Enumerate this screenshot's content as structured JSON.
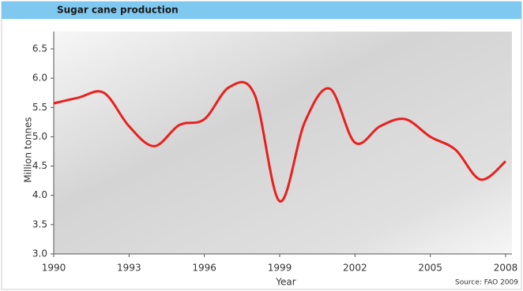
{
  "chart_data": {
    "type": "line",
    "title": "Sugar cane production",
    "x_label": "Year",
    "y_label": "Million tonnes",
    "source": "Source: FAO 2009",
    "x": [
      1990,
      1991,
      1992,
      1993,
      1994,
      1995,
      1996,
      1997,
      1998,
      1999,
      2000,
      2001,
      2002,
      2003,
      2004,
      2005,
      2006,
      2007,
      2008
    ],
    "series": [
      {
        "name": "Sugar cane production",
        "color": "#e8201e",
        "values": [
          5.57,
          5.67,
          5.75,
          5.18,
          4.84,
          5.2,
          5.3,
          5.85,
          5.72,
          3.9,
          5.25,
          5.82,
          4.9,
          5.18,
          5.3,
          5.0,
          4.78,
          4.27,
          4.58
        ]
      }
    ],
    "xlim": [
      1990,
      2008
    ],
    "xticks": [
      1990,
      1993,
      1996,
      1999,
      2002,
      2005,
      2008
    ],
    "ylim": [
      3,
      6.5
    ],
    "yticks": [
      {
        "value": 3,
        "label": "3.0"
      },
      3.5,
      {
        "value": 4,
        "label": "4.0"
      },
      4.5,
      {
        "value": 5,
        "label": "5.0"
      },
      5.5,
      {
        "value": 6,
        "label": "6.0"
      },
      6.5
    ]
  }
}
